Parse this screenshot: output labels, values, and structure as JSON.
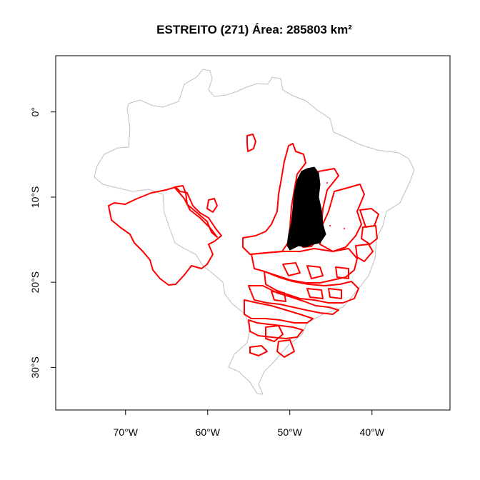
{
  "title": "ESTREITO (271) Área: 285803 km²",
  "colors": {
    "country_outline": "#bebebe",
    "basin_outline": "#ff0000",
    "selected_basin": "#000000",
    "frame": "#000000"
  },
  "map": {
    "projection": "lon-lat",
    "xlim": [
      -78.5,
      -30.5
    ],
    "ylim": [
      -35.0,
      6.6
    ],
    "x_ticks": [
      {
        "value": -70,
        "label": "70°W"
      },
      {
        "value": -60,
        "label": "60°W"
      },
      {
        "value": -50,
        "label": "50°W"
      },
      {
        "value": -40,
        "label": "40°W"
      }
    ],
    "y_ticks": [
      {
        "value": 0,
        "label": "0°"
      },
      {
        "value": -10,
        "label": "10°S"
      },
      {
        "value": -20,
        "label": "20°S"
      },
      {
        "value": -30,
        "label": "30°S"
      }
    ]
  },
  "layers": {
    "country": "Brazil outline",
    "basins": "red basin boundaries",
    "selected": "ESTREITO basin"
  }
}
